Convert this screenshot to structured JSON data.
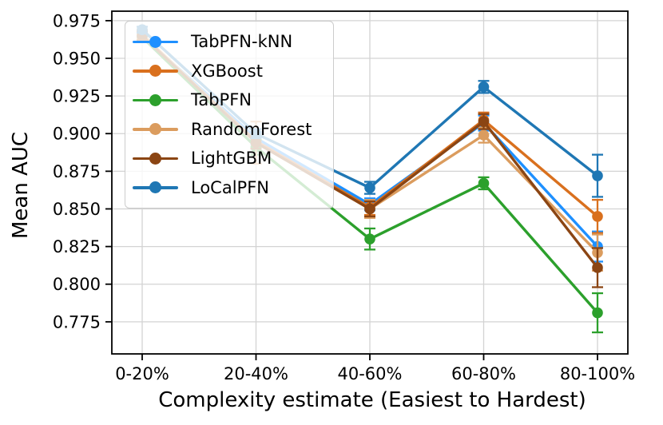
{
  "chart_data": {
    "type": "line",
    "title": "",
    "xlabel": "Complexity estimate (Easiest to Hardest)",
    "ylabel": "Mean AUC",
    "categories": [
      "0-20%",
      "20-40%",
      "40-60%",
      "60-80%",
      "80-100%"
    ],
    "yticks": [
      0.975,
      0.95,
      0.925,
      0.9,
      0.875,
      0.85,
      0.825,
      0.8,
      0.775
    ],
    "ylim": [
      0.7537,
      0.9813
    ],
    "grid": true,
    "legend_position": "upper-left",
    "error_bars": true,
    "series": [
      {
        "name": "TabPFN-kNN",
        "color": "#1E90FF",
        "values": [
          0.965,
          0.897,
          0.853,
          0.907,
          0.825
        ],
        "errors": [
          0.003,
          0.004,
          0.004,
          0.005,
          0.01
        ]
      },
      {
        "name": "XGBoost",
        "color": "#D9701E",
        "values": [
          0.965,
          0.895,
          0.851,
          0.909,
          0.845
        ],
        "errors": [
          0.003,
          0.004,
          0.005,
          0.005,
          0.011
        ]
      },
      {
        "name": "TabPFN",
        "color": "#2CA02C",
        "values": [
          0.964,
          0.891,
          0.83,
          0.867,
          0.781
        ],
        "errors": [
          0.003,
          0.005,
          0.007,
          0.004,
          0.013
        ]
      },
      {
        "name": "RandomForest",
        "color": "#DB9C5E",
        "values": [
          0.966,
          0.894,
          0.85,
          0.899,
          0.821
        ],
        "errors": [
          0.003,
          0.014,
          0.006,
          0.005,
          0.012
        ]
      },
      {
        "name": "LightGBM",
        "color": "#8B4513",
        "values": [
          0.965,
          0.894,
          0.85,
          0.908,
          0.811
        ],
        "errors": [
          0.003,
          0.004,
          0.005,
          0.005,
          0.013
        ]
      },
      {
        "name": "LoCalPFN",
        "color": "#1F77B4",
        "values": [
          0.969,
          0.9,
          0.864,
          0.931,
          0.872
        ],
        "errors": [
          0.002,
          0.003,
          0.004,
          0.004,
          0.014
        ]
      }
    ],
    "style": {
      "grid_color": "#d3d3d3",
      "spine_color": "#000000",
      "tick_label_color": "#000000"
    }
  }
}
